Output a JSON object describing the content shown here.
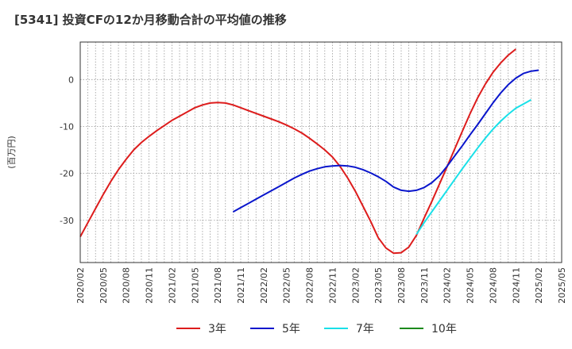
{
  "chart_data": {
    "type": "line",
    "title": "[5341]  投資CFの12か月移動合計の平均値の推移",
    "ylabel": "(百万円)",
    "xlabel": "",
    "ylim": [
      -39,
      8
    ],
    "yticks": [
      0,
      -10,
      -20,
      -30
    ],
    "xlim": [
      "2020-02",
      "2025-05"
    ],
    "xticks": [
      "2020/02",
      "2020/05",
      "2020/08",
      "2020/11",
      "2021/02",
      "2021/05",
      "2021/08",
      "2021/11",
      "2022/02",
      "2022/05",
      "2022/08",
      "2022/11",
      "2023/02",
      "2023/05",
      "2023/08",
      "2023/11",
      "2024/02",
      "2024/05",
      "2024/08",
      "2024/11",
      "2025/02",
      "2025/05"
    ],
    "grid": true,
    "legend": "bottom",
    "series": [
      {
        "name": "3年",
        "color": "#dd1c1c",
        "points": [
          [
            "2020-02",
            -33.5
          ],
          [
            "2020-03",
            -30.5
          ],
          [
            "2020-04",
            -27.5
          ],
          [
            "2020-05",
            -24.5
          ],
          [
            "2020-06",
            -21.7
          ],
          [
            "2020-07",
            -19.2
          ],
          [
            "2020-08",
            -17.0
          ],
          [
            "2020-09",
            -15.0
          ],
          [
            "2020-10",
            -13.4
          ],
          [
            "2020-11",
            -12.1
          ],
          [
            "2020-12",
            -10.9
          ],
          [
            "2021-01",
            -9.8
          ],
          [
            "2021-02",
            -8.7
          ],
          [
            "2021-03",
            -7.8
          ],
          [
            "2021-04",
            -6.9
          ],
          [
            "2021-05",
            -6.0
          ],
          [
            "2021-06",
            -5.4
          ],
          [
            "2021-07",
            -5.0
          ],
          [
            "2021-08",
            -4.9
          ],
          [
            "2021-09",
            -5.0
          ],
          [
            "2021-10",
            -5.4
          ],
          [
            "2021-11",
            -6.0
          ],
          [
            "2021-12",
            -6.6
          ],
          [
            "2022-01",
            -7.2
          ],
          [
            "2022-02",
            -7.8
          ],
          [
            "2022-03",
            -8.4
          ],
          [
            "2022-04",
            -9.0
          ],
          [
            "2022-05",
            -9.7
          ],
          [
            "2022-06",
            -10.5
          ],
          [
            "2022-07",
            -11.4
          ],
          [
            "2022-08",
            -12.5
          ],
          [
            "2022-09",
            -13.7
          ],
          [
            "2022-10",
            -15.0
          ],
          [
            "2022-11",
            -16.5
          ],
          [
            "2022-12",
            -18.5
          ],
          [
            "2023-01",
            -21.0
          ],
          [
            "2023-02",
            -23.8
          ],
          [
            "2023-03",
            -27.0
          ],
          [
            "2023-04",
            -30.2
          ],
          [
            "2023-05",
            -33.7
          ],
          [
            "2023-06",
            -35.9
          ],
          [
            "2023-07",
            -37.0
          ],
          [
            "2023-08",
            -36.9
          ],
          [
            "2023-09",
            -35.7
          ],
          [
            "2023-10",
            -33.2
          ],
          [
            "2023-11",
            -29.5
          ],
          [
            "2023-12",
            -26.0
          ],
          [
            "2024-01",
            -22.3
          ],
          [
            "2024-02",
            -18.6
          ],
          [
            "2024-03",
            -14.8
          ],
          [
            "2024-04",
            -11.0
          ],
          [
            "2024-05",
            -7.3
          ],
          [
            "2024-06",
            -3.9
          ],
          [
            "2024-07",
            -1.0
          ],
          [
            "2024-08",
            1.5
          ],
          [
            "2024-09",
            3.5
          ],
          [
            "2024-10",
            5.2
          ],
          [
            "2024-11",
            6.5
          ]
        ]
      },
      {
        "name": "5年",
        "color": "#0a16cc",
        "points": [
          [
            "2021-10",
            -28.2
          ],
          [
            "2021-11",
            -27.3
          ],
          [
            "2021-12",
            -26.4
          ],
          [
            "2022-01",
            -25.5
          ],
          [
            "2022-02",
            -24.6
          ],
          [
            "2022-03",
            -23.7
          ],
          [
            "2022-04",
            -22.8
          ],
          [
            "2022-05",
            -21.9
          ],
          [
            "2022-06",
            -21.0
          ],
          [
            "2022-07",
            -20.2
          ],
          [
            "2022-08",
            -19.5
          ],
          [
            "2022-09",
            -19.0
          ],
          [
            "2022-10",
            -18.6
          ],
          [
            "2022-11",
            -18.4
          ],
          [
            "2022-12",
            -18.3
          ],
          [
            "2023-01",
            -18.4
          ],
          [
            "2023-02",
            -18.7
          ],
          [
            "2023-03",
            -19.2
          ],
          [
            "2023-04",
            -19.9
          ],
          [
            "2023-05",
            -20.7
          ],
          [
            "2023-06",
            -21.7
          ],
          [
            "2023-07",
            -22.9
          ],
          [
            "2023-08",
            -23.6
          ],
          [
            "2023-09",
            -23.8
          ],
          [
            "2023-10",
            -23.6
          ],
          [
            "2023-11",
            -23.0
          ],
          [
            "2023-12",
            -22.0
          ],
          [
            "2024-01",
            -20.5
          ],
          [
            "2024-02",
            -18.5
          ],
          [
            "2024-03",
            -16.3
          ],
          [
            "2024-04",
            -14.1
          ],
          [
            "2024-05",
            -11.8
          ],
          [
            "2024-06",
            -9.6
          ],
          [
            "2024-07",
            -7.3
          ],
          [
            "2024-08",
            -5.0
          ],
          [
            "2024-09",
            -2.9
          ],
          [
            "2024-10",
            -1.1
          ],
          [
            "2024-11",
            0.3
          ],
          [
            "2024-12",
            1.3
          ],
          [
            "2025-01",
            1.8
          ],
          [
            "2025-02",
            2.0
          ]
        ]
      },
      {
        "name": "7年",
        "color": "#19e0e8",
        "points": [
          [
            "2023-10",
            -33.0
          ],
          [
            "2023-11",
            -30.5
          ],
          [
            "2023-12",
            -28.2
          ],
          [
            "2024-01",
            -25.9
          ],
          [
            "2024-02",
            -23.6
          ],
          [
            "2024-03",
            -21.3
          ],
          [
            "2024-04",
            -19.0
          ],
          [
            "2024-05",
            -16.8
          ],
          [
            "2024-06",
            -14.6
          ],
          [
            "2024-07",
            -12.5
          ],
          [
            "2024-08",
            -10.6
          ],
          [
            "2024-09",
            -8.9
          ],
          [
            "2024-10",
            -7.4
          ],
          [
            "2024-11",
            -6.1
          ],
          [
            "2024-12",
            -5.2
          ],
          [
            "2025-01",
            -4.3
          ]
        ]
      },
      {
        "name": "10年",
        "color": "#1c8a1c",
        "points": []
      }
    ]
  }
}
